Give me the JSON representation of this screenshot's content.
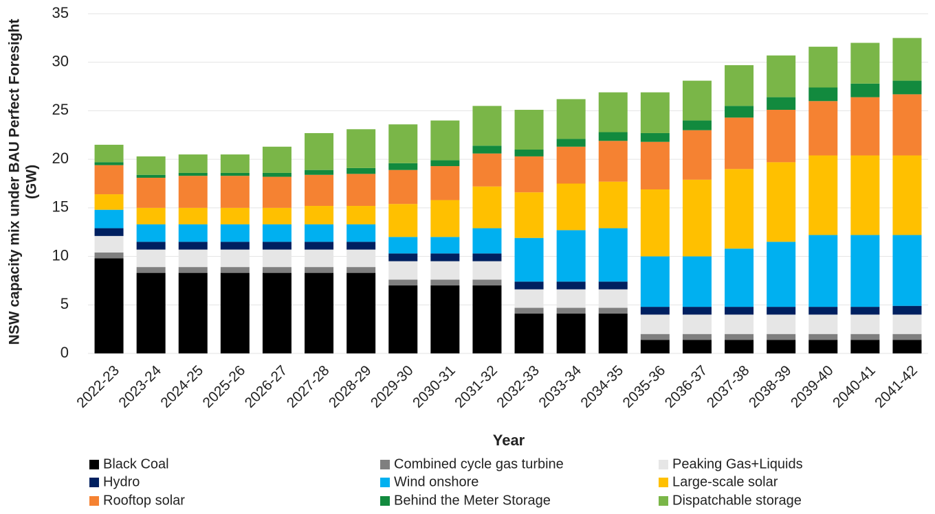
{
  "chart_data": {
    "type": "stacked_bar",
    "x_label": "Year",
    "y_label": [
      "NSW capacity mix under BAU Perfect Foresight",
      "(GW)"
    ],
    "categories": [
      "2022-23",
      "2023-24",
      "2024-25",
      "2025-26",
      "2026-27",
      "2027-28",
      "2028-29",
      "2029-30",
      "2030-31",
      "2031-32",
      "2032-33",
      "2033-34",
      "2034-35",
      "2035-36",
      "2036-37",
      "2037-38",
      "2038-39",
      "2039-40",
      "2040-41",
      "2041-42"
    ],
    "ylim": [
      0,
      35
    ],
    "yticks": [
      0,
      5,
      10,
      15,
      20,
      25,
      30,
      35
    ],
    "grid": true,
    "legend": "bottom",
    "series": [
      {
        "name": "Black Coal",
        "color": "#000000",
        "values": [
          9.8,
          8.3,
          8.3,
          8.3,
          8.3,
          8.3,
          8.3,
          7.0,
          7.0,
          7.0,
          4.1,
          4.1,
          4.1,
          1.4,
          1.4,
          1.4,
          1.4,
          1.4,
          1.4,
          1.4
        ]
      },
      {
        "name": "Combined cycle gas turbine",
        "color": "#7f7f7f",
        "values": [
          0.6,
          0.6,
          0.6,
          0.6,
          0.6,
          0.6,
          0.6,
          0.6,
          0.6,
          0.6,
          0.6,
          0.6,
          0.6,
          0.6,
          0.6,
          0.6,
          0.6,
          0.6,
          0.6,
          0.6
        ]
      },
      {
        "name": "Peaking Gas+Liquids",
        "color": "#e6e6e6",
        "values": [
          1.7,
          1.8,
          1.8,
          1.8,
          1.8,
          1.8,
          1.8,
          1.9,
          1.9,
          1.9,
          1.9,
          1.9,
          1.9,
          2.0,
          2.0,
          2.0,
          2.0,
          2.0,
          2.0,
          2.0
        ]
      },
      {
        "name": "Hydro",
        "color": "#002060",
        "values": [
          0.8,
          0.8,
          0.8,
          0.8,
          0.8,
          0.8,
          0.8,
          0.8,
          0.8,
          0.8,
          0.8,
          0.8,
          0.8,
          0.8,
          0.8,
          0.8,
          0.8,
          0.8,
          0.8,
          0.9
        ]
      },
      {
        "name": "Wind onshore",
        "color": "#00b0f0",
        "values": [
          1.9,
          1.8,
          1.8,
          1.8,
          1.8,
          1.8,
          1.8,
          1.7,
          1.7,
          2.6,
          4.5,
          5.3,
          5.5,
          5.2,
          5.2,
          6.0,
          6.7,
          7.4,
          7.4,
          7.3
        ]
      },
      {
        "name": "Large-scale solar",
        "color": "#ffc000",
        "values": [
          1.6,
          1.7,
          1.7,
          1.7,
          1.7,
          1.9,
          1.9,
          3.4,
          3.8,
          4.3,
          4.7,
          4.8,
          4.8,
          6.9,
          7.9,
          8.2,
          8.2,
          8.2,
          8.2,
          8.2
        ]
      },
      {
        "name": "Rooftop solar",
        "color": "#f58232",
        "values": [
          3.0,
          3.1,
          3.3,
          3.3,
          3.2,
          3.2,
          3.3,
          3.5,
          3.5,
          3.4,
          3.7,
          3.8,
          4.2,
          4.9,
          5.1,
          5.3,
          5.4,
          5.6,
          6.0,
          6.3
        ]
      },
      {
        "name": "Behind the Meter Storage",
        "color": "#128a3e",
        "values": [
          0.3,
          0.3,
          0.3,
          0.3,
          0.4,
          0.5,
          0.6,
          0.7,
          0.6,
          0.8,
          0.7,
          0.8,
          0.9,
          0.9,
          1.0,
          1.2,
          1.3,
          1.4,
          1.4,
          1.4
        ]
      },
      {
        "name": "Dispatchable storage",
        "color": "#7ab648",
        "values": [
          1.8,
          1.9,
          1.9,
          1.9,
          2.7,
          3.8,
          4.0,
          4.0,
          4.1,
          4.1,
          4.1,
          4.1,
          4.1,
          4.2,
          4.1,
          4.2,
          4.3,
          4.2,
          4.2,
          4.4
        ]
      }
    ]
  }
}
